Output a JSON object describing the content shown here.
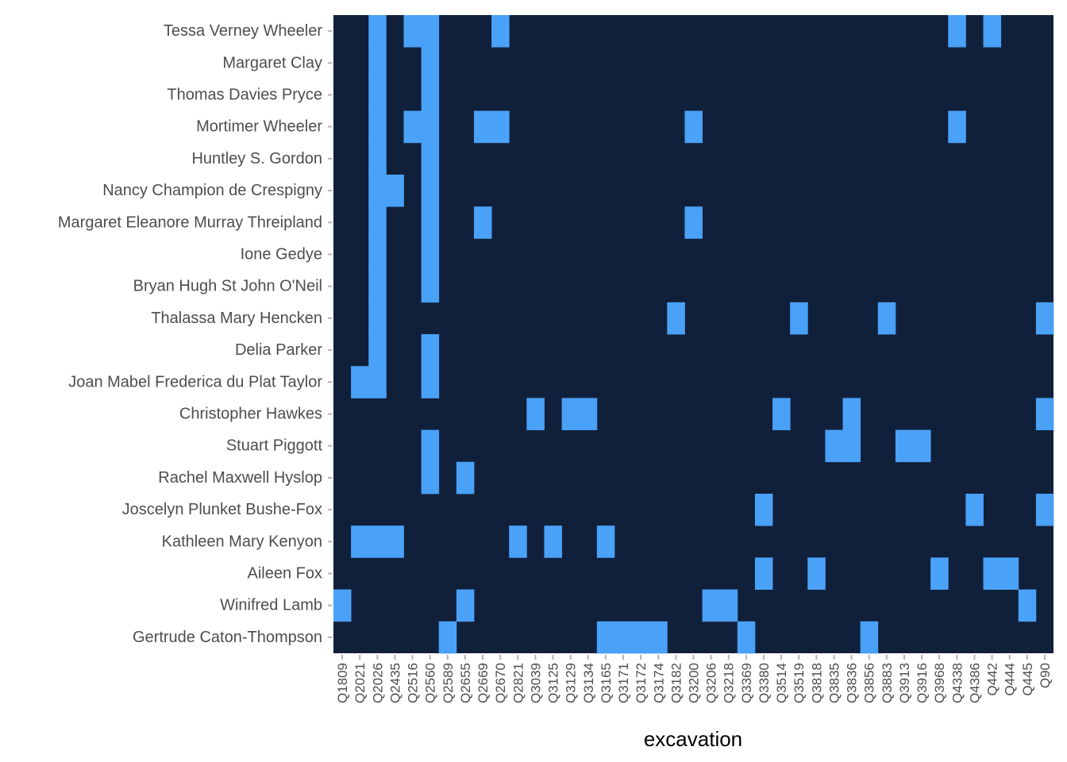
{
  "chart_data": {
    "type": "heatmap",
    "xlabel": "excavation",
    "ylabel": "",
    "grid": false,
    "legend": "none",
    "colors": {
      "background": "#11203a",
      "filled": "#4aa1f8"
    },
    "x": [
      "Q1809",
      "Q2021",
      "Q2026",
      "Q2435",
      "Q2516",
      "Q2560",
      "Q2589",
      "Q2655",
      "Q2669",
      "Q2670",
      "Q2821",
      "Q3039",
      "Q3125",
      "Q3129",
      "Q3134",
      "Q3165",
      "Q3171",
      "Q3172",
      "Q3174",
      "Q3182",
      "Q3200",
      "Q3206",
      "Q3218",
      "Q3369",
      "Q3380",
      "Q3514",
      "Q3519",
      "Q3818",
      "Q3835",
      "Q3836",
      "Q3856",
      "Q3883",
      "Q3913",
      "Q3916",
      "Q3968",
      "Q4338",
      "Q4386",
      "Q442",
      "Q444",
      "Q445",
      "Q90"
    ],
    "y": [
      "Tessa Verney Wheeler",
      "Margaret Clay",
      "Thomas Davies Pryce",
      "Mortimer Wheeler",
      "Huntley S. Gordon",
      "Nancy Champion de Crespigny",
      "Margaret Eleanore Murray Threipland",
      "Ione Gedye",
      "Bryan Hugh St John O'Neil",
      "Thalassa Mary Hencken",
      "Delia Parker",
      "Joan Mabel Frederica du Plat Taylor",
      "Christopher Hawkes",
      "Stuart Piggott",
      "Rachel Maxwell Hyslop",
      "Joscelyn Plunket Bushe-Fox",
      "Kathleen Mary Kenyon",
      "Aileen Fox",
      "Winifred Lamb",
      "Gertrude Caton-Thompson"
    ],
    "cells": [
      [
        "Tessa Verney Wheeler",
        [
          "Q2026",
          "Q2516",
          "Q2560",
          "Q2670",
          "Q4338",
          "Q442"
        ]
      ],
      [
        "Margaret Clay",
        [
          "Q2026",
          "Q2560"
        ]
      ],
      [
        "Thomas Davies Pryce",
        [
          "Q2026",
          "Q2560"
        ]
      ],
      [
        "Mortimer Wheeler",
        [
          "Q2026",
          "Q2516",
          "Q2560",
          "Q2669",
          "Q2670",
          "Q3200",
          "Q4338"
        ]
      ],
      [
        "Huntley S. Gordon",
        [
          "Q2026",
          "Q2560"
        ]
      ],
      [
        "Nancy Champion de Crespigny",
        [
          "Q2026",
          "Q2435",
          "Q2560"
        ]
      ],
      [
        "Margaret Eleanore Murray Threipland",
        [
          "Q2026",
          "Q2560",
          "Q2669",
          "Q3200"
        ]
      ],
      [
        "Ione Gedye",
        [
          "Q2026",
          "Q2560"
        ]
      ],
      [
        "Bryan Hugh St John O'Neil",
        [
          "Q2026",
          "Q2560"
        ]
      ],
      [
        "Thalassa Mary Hencken",
        [
          "Q2026",
          "Q3182",
          "Q3519",
          "Q3883",
          "Q90"
        ]
      ],
      [
        "Delia Parker",
        [
          "Q2026",
          "Q2560"
        ]
      ],
      [
        "Joan Mabel Frederica du Plat Taylor",
        [
          "Q2021",
          "Q2026",
          "Q2560"
        ]
      ],
      [
        "Christopher Hawkes",
        [
          "Q3039",
          "Q3129",
          "Q3134",
          "Q3514",
          "Q3836",
          "Q90"
        ]
      ],
      [
        "Stuart Piggott",
        [
          "Q2560",
          "Q3835",
          "Q3836",
          "Q3913",
          "Q3916"
        ]
      ],
      [
        "Rachel Maxwell Hyslop",
        [
          "Q2560",
          "Q2655"
        ]
      ],
      [
        "Joscelyn Plunket Bushe-Fox",
        [
          "Q3380",
          "Q4386",
          "Q90"
        ]
      ],
      [
        "Kathleen Mary Kenyon",
        [
          "Q2021",
          "Q2026",
          "Q2435",
          "Q2821",
          "Q3125",
          "Q3165"
        ]
      ],
      [
        "Aileen Fox",
        [
          "Q3380",
          "Q3818",
          "Q3968",
          "Q442",
          "Q444"
        ]
      ],
      [
        "Winifred Lamb",
        [
          "Q1809",
          "Q2655",
          "Q3206",
          "Q3218",
          "Q445"
        ]
      ],
      [
        "Gertrude Caton-Thompson",
        [
          "Q2589",
          "Q3165",
          "Q3171",
          "Q3172",
          "Q3174",
          "Q3369",
          "Q3856"
        ]
      ]
    ]
  }
}
